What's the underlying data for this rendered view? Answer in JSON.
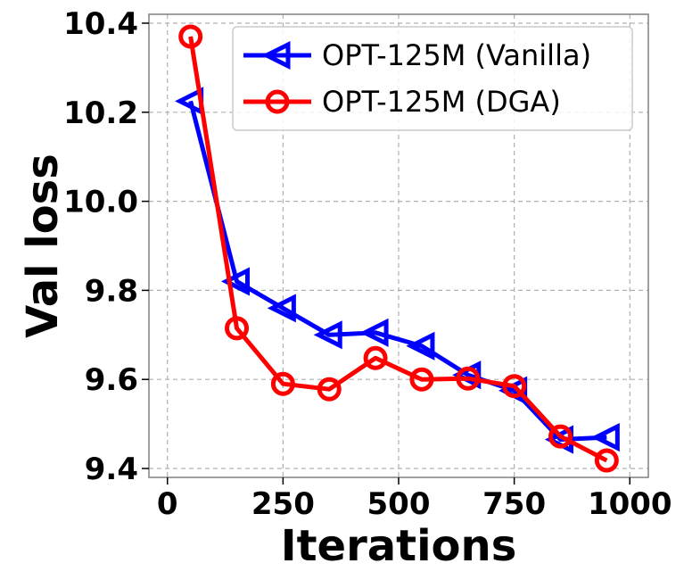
{
  "chart_data": {
    "type": "line",
    "title": "",
    "xlabel": "Iterations",
    "ylabel": "Val loss",
    "xlim": [
      -40,
      1040
    ],
    "ylim": [
      9.38,
      10.42
    ],
    "xticks": [
      0,
      250,
      500,
      750,
      1000
    ],
    "yticks": [
      9.4,
      9.6,
      9.8,
      10.0,
      10.2,
      10.4
    ],
    "ytick_labels": [
      "9.4",
      "9.6",
      "9.8",
      "10.0",
      "10.2",
      "10.4"
    ],
    "grid": true,
    "legend_position": "top-right",
    "series": [
      {
        "name": "OPT-125M (Vanilla)",
        "color": "#0000ff",
        "marker": "triangle-left",
        "x": [
          50,
          150,
          250,
          350,
          450,
          550,
          650,
          750,
          850,
          950
        ],
        "values": [
          10.225,
          9.82,
          9.76,
          9.7,
          9.705,
          9.675,
          9.61,
          9.575,
          9.465,
          9.47
        ]
      },
      {
        "name": "OPT-125M (DGA)",
        "color": "#ff0000",
        "marker": "circle",
        "x": [
          50,
          150,
          250,
          350,
          450,
          550,
          650,
          750,
          850,
          950
        ],
        "values": [
          10.37,
          9.715,
          9.59,
          9.578,
          9.648,
          9.6,
          9.602,
          9.585,
          9.472,
          9.418
        ]
      }
    ]
  }
}
